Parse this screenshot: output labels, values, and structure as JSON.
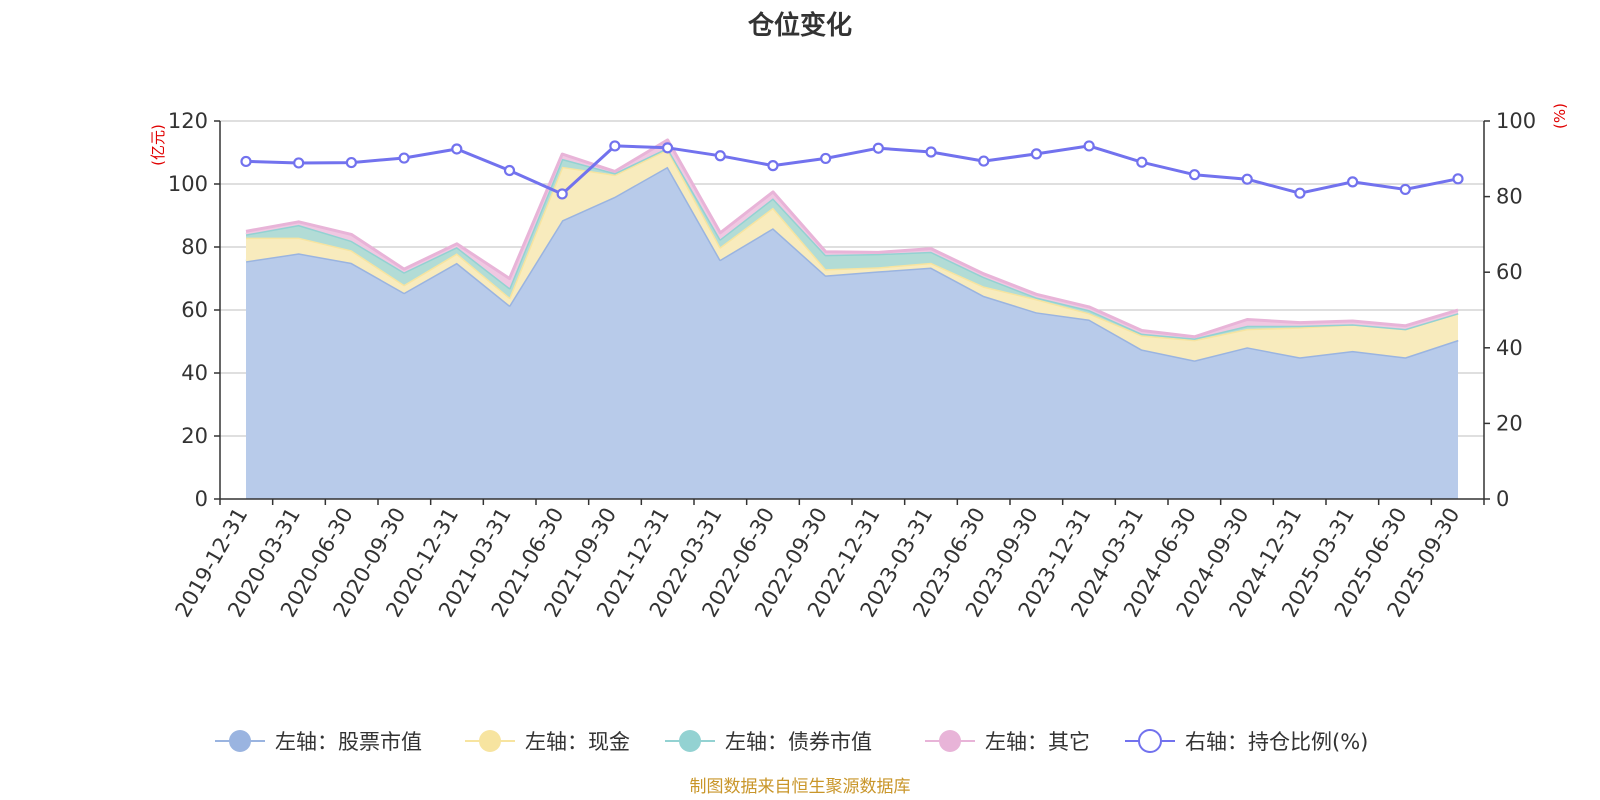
{
  "chart_data": {
    "type": "area",
    "title": "仓位变化",
    "left_axis_unit": "(亿元)",
    "right_axis_unit": "(%)",
    "ylim_left": [
      0,
      120
    ],
    "yticks_left": [
      0,
      20,
      40,
      60,
      80,
      100,
      120
    ],
    "ylim_right": [
      0,
      100
    ],
    "yticks_right": [
      0,
      20,
      40,
      60,
      80,
      100
    ],
    "categories": [
      "2019-12-31",
      "2020-03-31",
      "2020-06-30",
      "2020-09-30",
      "2020-12-31",
      "2021-03-31",
      "2021-06-30",
      "2021-09-30",
      "2021-12-31",
      "2022-03-31",
      "2022-06-30",
      "2022-09-30",
      "2022-12-31",
      "2023-03-31",
      "2023-06-30",
      "2023-09-30",
      "2023-12-31",
      "2024-03-31",
      "2024-06-30",
      "2024-09-30",
      "2024-12-31",
      "2025-03-31",
      "2025-06-30",
      "2025-09-30"
    ],
    "series": [
      {
        "name": "左轴：股票市值",
        "axis": "left",
        "kind": "stacked-area",
        "color": "#9ab4e0",
        "fill": "#b8cbea",
        "values": [
          75.5,
          78,
          75,
          65.5,
          75,
          61.5,
          88.5,
          96,
          105.5,
          76,
          86,
          71,
          72.3,
          73.5,
          64.5,
          59.3,
          57,
          47.5,
          44,
          48.2,
          45,
          47,
          45,
          50.5
        ]
      },
      {
        "name": "左轴：现金",
        "axis": "left",
        "kind": "stacked-area",
        "color": "#f7e4a0",
        "fill": "#f8ebbd",
        "values": [
          7.5,
          5,
          4,
          2.5,
          3,
          2.5,
          17,
          7,
          5.5,
          4,
          6.5,
          2,
          1.3,
          1.5,
          3,
          4.2,
          2,
          4.5,
          6.5,
          5.8,
          9.5,
          8.5,
          9,
          8.5
        ]
      },
      {
        "name": "左轴：债券市值",
        "axis": "left",
        "kind": "stacked-area",
        "color": "#93d2d2",
        "fill": "#b2dcd6",
        "values": [
          1,
          4,
          3,
          4,
          2,
          3,
          2.5,
          0.5,
          0.5,
          2.5,
          3,
          4.5,
          4.2,
          3.5,
          3,
          0.5,
          1,
          0.5,
          0.5,
          1,
          0.5,
          0,
          0,
          0
        ]
      },
      {
        "name": "左轴：其它",
        "axis": "left",
        "kind": "stacked-area",
        "color": "#e8b4d8",
        "fill": "#f0c8e2",
        "values": [
          1,
          1,
          2,
          1,
          1,
          3,
          1.5,
          0.5,
          2.5,
          2,
          2,
          1,
          0.5,
          1,
          1,
          1,
          1,
          1,
          0.5,
          2,
          1,
          1,
          1,
          1
        ]
      },
      {
        "name": "右轴：持仓比例(%)",
        "axis": "right",
        "kind": "line",
        "color": "#7272ee",
        "values": [
          89.3,
          88.9,
          89.0,
          90.2,
          92.6,
          86.9,
          80.7,
          93.4,
          92.9,
          90.8,
          88.2,
          90.1,
          92.8,
          91.8,
          89.4,
          91.3,
          93.4,
          89.1,
          85.8,
          84.6,
          80.9,
          83.9,
          81.9,
          84.7
        ]
      }
    ]
  },
  "source_note": "制图数据来自恒生聚源数据库"
}
